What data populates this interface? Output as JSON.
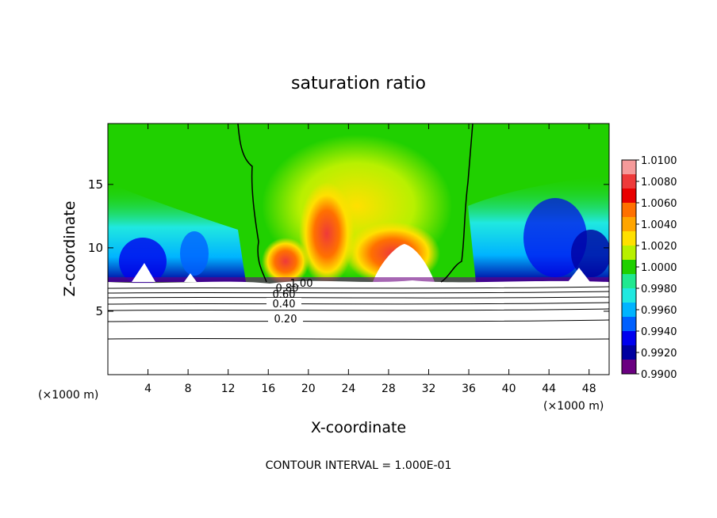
{
  "chart_data": {
    "type": "heatmap",
    "title": "saturation ratio",
    "xlabel": "X-coordinate",
    "ylabel": "Z-coordinate",
    "x_unit_left": "(×1000 m)",
    "x_unit_right": "(×1000 m)",
    "footer": "CONTOUR INTERVAL = 1.000E-01",
    "xlim": [
      0,
      50
    ],
    "ylim": [
      0,
      19.8
    ],
    "xticks": [
      "4",
      "8",
      "12",
      "16",
      "20",
      "24",
      "28",
      "32",
      "36",
      "40",
      "44",
      "48"
    ],
    "xtick_values": [
      4,
      8,
      12,
      16,
      20,
      24,
      28,
      32,
      36,
      40,
      44,
      48
    ],
    "yticks": [
      "5",
      "10",
      "15"
    ],
    "ytick_values": [
      5,
      10,
      15
    ],
    "colorbar": {
      "labels": [
        "1.0100",
        "1.0080",
        "1.0060",
        "1.0040",
        "1.0020",
        "1.0000",
        "0.9980",
        "0.9960",
        "0.9940",
        "0.9920",
        "0.9900"
      ],
      "values": [
        1.01,
        1.008,
        1.006,
        1.004,
        1.002,
        1.0,
        0.998,
        0.996,
        0.994,
        0.992,
        0.99
      ],
      "colors": [
        "#f59a9a",
        "#ee3a3a",
        "#e80000",
        "#ff7000",
        "#ffa500",
        "#ffe000",
        "#b8f000",
        "#20d000",
        "#20e890",
        "#20e8e0",
        "#00b4ff",
        "#0060ff",
        "#0000ee",
        "#0000a0",
        "#6a0080"
      ]
    },
    "contour_labels": [
      "0.20",
      "0.40",
      "0.60",
      "0.80",
      "1.00"
    ],
    "contour_label_values": [
      0.2,
      0.4,
      0.6,
      0.8,
      1.0
    ]
  }
}
